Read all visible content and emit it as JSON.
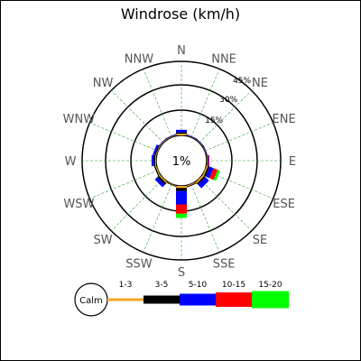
{
  "chart_data": {
    "type": "windrose",
    "title": "Windrose (km/h)",
    "calm_label": "Calm",
    "calm_value_label": "1%",
    "calm_percent": 1,
    "directions": [
      "N",
      "NNE",
      "NE",
      "ENE",
      "E",
      "ESE",
      "SE",
      "SSE",
      "S",
      "SSW",
      "SW",
      "WSW",
      "W",
      "WNW",
      "NW",
      "NNW"
    ],
    "rings": [
      {
        "value": 15,
        "label": "15%"
      },
      {
        "value": 30,
        "label": "30%"
      },
      {
        "value": 45,
        "label": "45%"
      }
    ],
    "speed_classes": [
      {
        "label": "1-3",
        "color": "#f5a623"
      },
      {
        "label": "3-5",
        "color": "#000000"
      },
      {
        "label": "5-10",
        "color": "#0000ff"
      },
      {
        "label": "10-15",
        "color": "#ff0000"
      },
      {
        "label": "15-20",
        "color": "#00ff00"
      }
    ],
    "frequencies": [
      [
        1.0,
        0.8,
        1.5,
        0.0,
        0.0
      ],
      [
        0.2,
        0.2,
        0.3,
        0.0,
        0.0
      ],
      [
        0.2,
        0.2,
        0.3,
        0.0,
        0.0
      ],
      [
        0.2,
        0.2,
        0.3,
        0.0,
        0.0
      ],
      [
        0.3,
        0.3,
        0.5,
        0.5,
        0.0
      ],
      [
        0.8,
        1.0,
        2.5,
        2.7,
        1.5
      ],
      [
        1.0,
        1.0,
        3.0,
        0.0,
        0.0
      ],
      [
        0.5,
        0.5,
        0.0,
        0.0,
        0.0
      ],
      [
        1.2,
        1.8,
        8.0,
        5.5,
        2.5
      ],
      [
        0.3,
        0.3,
        0.0,
        0.0,
        0.0
      ],
      [
        0.8,
        1.3,
        2.0,
        0.0,
        0.0
      ],
      [
        0.6,
        0.7,
        0.0,
        0.0,
        0.0
      ],
      [
        0.5,
        1.0,
        1.2,
        0.0,
        0.0
      ],
      [
        0.4,
        0.6,
        1.2,
        0.0,
        0.0
      ],
      [
        0.3,
        0.3,
        0.3,
        0.0,
        0.0
      ],
      [
        0.3,
        0.3,
        0.3,
        0.0,
        0.0
      ]
    ]
  }
}
